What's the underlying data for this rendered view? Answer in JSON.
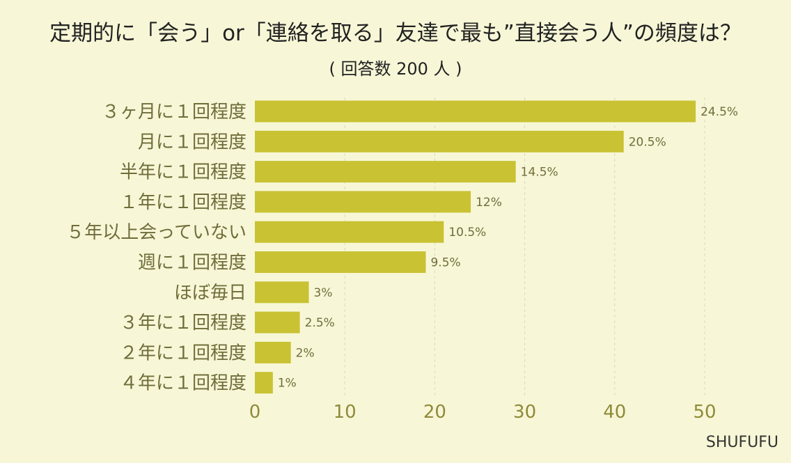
{
  "colors": {
    "background": "#f7f7d7",
    "bar": "#c9c233",
    "label": "#6f6d3a",
    "tick": "#8f8a3a"
  },
  "brand": "SHUFUFU",
  "chart_data": {
    "type": "bar",
    "orientation": "horizontal",
    "title": "定期的に「会う」or「連絡を取る」友達で最も”直接会う人”の頻度は？",
    "subtitle": "( 回答数 200 人 )",
    "categories": [
      "３ヶ月に１回程度",
      "月に１回程度",
      "半年に１回程度",
      "１年に１回程度",
      "５年以上会っていない",
      "週に１回程度",
      "ほぼ毎日",
      "３年に１回程度",
      "２年に１回程度",
      "４年に１回程度"
    ],
    "values": [
      49,
      41,
      29,
      24,
      21,
      19,
      6,
      5,
      4,
      2
    ],
    "data_labels": [
      "24.5%",
      "20.5%",
      "14.5%",
      "12%",
      "10.5%",
      "9.5%",
      "3%",
      "2.5%",
      "2%",
      "1%"
    ],
    "xlim": [
      0,
      50
    ],
    "xticks": [
      "0",
      "10",
      "20",
      "30",
      "40",
      "50"
    ],
    "xtick_values": [
      0,
      10,
      20,
      30,
      40,
      50
    ],
    "grid": true,
    "legend": "none"
  }
}
